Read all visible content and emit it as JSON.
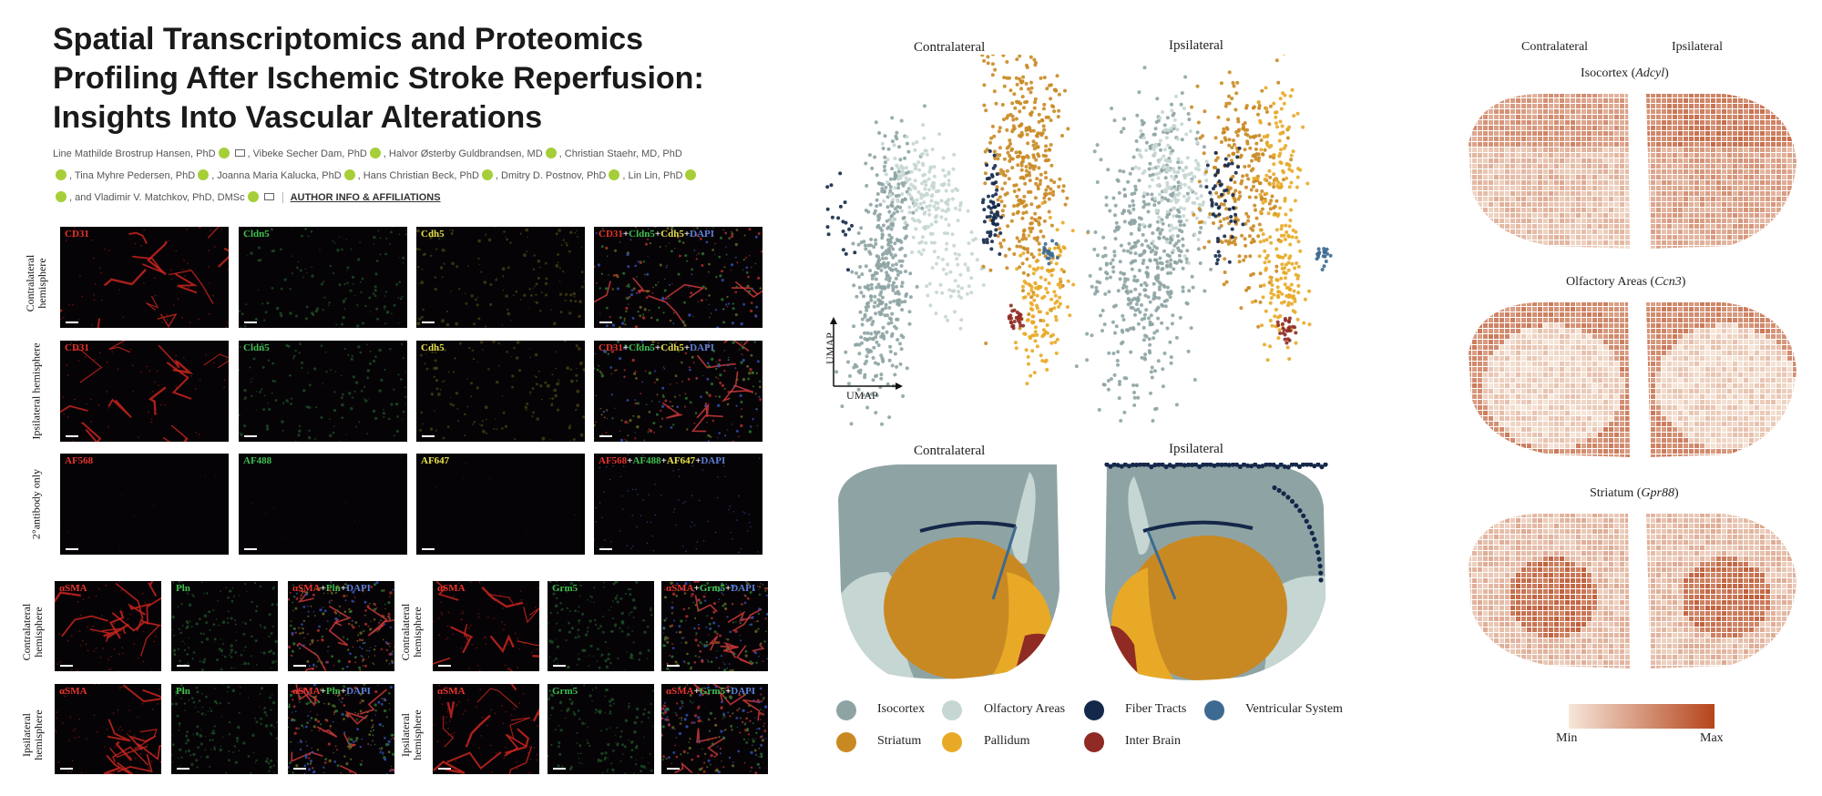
{
  "paper": {
    "title_lines": [
      "Spatial Transcriptomics and Proteomics",
      "Profiling After Ischemic Stroke Reperfusion:",
      "Insights Into Vascular Alterations"
    ],
    "authors_line1": "Line Mathilde Brostrup Hansen, PhD",
    "authors_line1b": ", Vibeke Secher Dam, PhD",
    "authors_line1c": ", Halvor Østerby Guldbrandsen, MD",
    "authors_line1d": ", Christian Staehr, MD, PhD",
    "authors_line2": ", Tina Myhre Pedersen, PhD",
    "authors_line2b": ", Joanna Maria Kalucka, PhD",
    "authors_line2c": ", Hans Christian Beck, PhD",
    "authors_line2d": ", Dmitry D. Postnov, PhD",
    "authors_line2e": ", Lin Lin, PhD",
    "authors_line3": ", and Vladimir V. Matchkov, PhD, DMSc",
    "affiliations_link": "AUTHOR INFO & AFFILIATIONS"
  },
  "micrographs": {
    "row_labels": [
      "Contralateral hemisphere",
      "Ipsilateral hemisphere",
      "2°antibody only"
    ],
    "rows": [
      [
        "CD31",
        "Cldn5",
        "Cdh5"
      ],
      [
        "CD31",
        "Cldn5",
        "Cdh5"
      ],
      [
        "AF568",
        "AF488",
        "AF647"
      ]
    ],
    "merge_parts": [
      [
        "CD31",
        "+",
        "Cldn5",
        "+",
        "Cdh5",
        "+",
        "DAPI"
      ],
      [
        "CD31",
        "+",
        "Cldn5",
        "+",
        "Cdh5",
        "+",
        "DAPI"
      ],
      [
        "AF568",
        "+",
        "AF488",
        "+",
        "AF647",
        "+",
        "DAPI"
      ]
    ],
    "bottom_row_labels": [
      "Contralateral hemisphere",
      "Ipsilateral hemisphere"
    ],
    "bottom_left": [
      "αSMA",
      "Pln"
    ],
    "bottom_left_merge": [
      "αSMA",
      "+",
      "Pln",
      "+",
      "DAPI"
    ],
    "bottom_right": [
      "αSMA",
      "Grm5"
    ],
    "bottom_right_merge": [
      "αSMA",
      "+",
      "Grm5",
      "+",
      "DAPI"
    ]
  },
  "colors": {
    "red": "#e8352c",
    "green": "#3fbf4f",
    "yellow": "#e6e04a",
    "blue": "#5b7fd6",
    "isocortex": "#8ea4a4",
    "olfactory": "#c5d6d3",
    "fiber": "#14284a",
    "ventricular": "#3d6a90",
    "striatum": "#c98922",
    "pallidum": "#e8aa26",
    "interbrain": "#8f2b24",
    "heat_min": "#f6e6d9",
    "heat_max": "#b5451c"
  },
  "umap": {
    "titles": [
      "Contralateral",
      "Ipsilateral"
    ],
    "xlabel": "UMAP",
    "ylabel": "UMAP"
  },
  "spatial": {
    "titles": [
      "Contralateral",
      "Ipsilateral"
    ]
  },
  "legend": [
    {
      "label": "Isocortex",
      "color_key": "isocortex"
    },
    {
      "label": "Olfactory Areas",
      "color_key": "olfactory"
    },
    {
      "label": "Fiber Tracts",
      "color_key": "fiber"
    },
    {
      "label": "Ventricular System",
      "color_key": "ventricular"
    },
    {
      "label": "Striatum",
      "color_key": "striatum"
    },
    {
      "label": "Pallidum",
      "color_key": "pallidum"
    },
    {
      "label": "Inter Brain",
      "color_key": "interbrain"
    }
  ],
  "heatmaps": {
    "header_left": "Contralateral",
    "header_right": "Ipsilateral",
    "panels": [
      {
        "region": "Isocortex",
        "gene": "Adcyl"
      },
      {
        "region": "Olfactory Areas",
        "gene": "Ccn3"
      },
      {
        "region": "Striatum",
        "gene": "Gpr88"
      }
    ],
    "colorbar_min": "Min",
    "colorbar_max": "Max"
  }
}
